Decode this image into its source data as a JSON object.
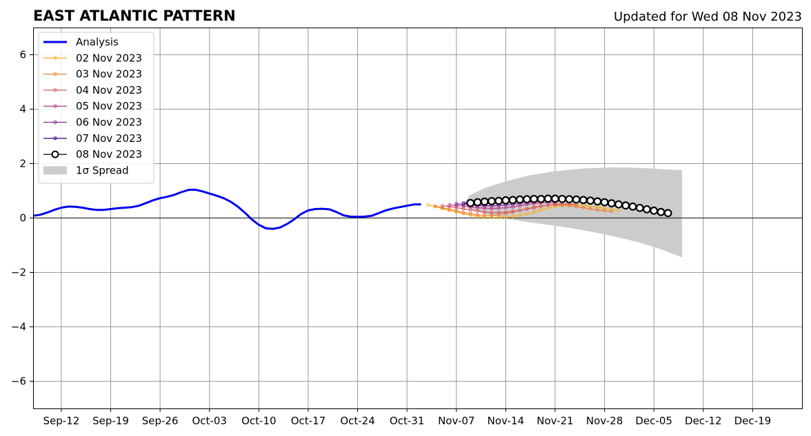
{
  "chart_data": {
    "type": "line",
    "title": "EAST ATLANTIC PATTERN",
    "subtitle": "Updated for Wed 08 Nov 2023",
    "xlabel": "",
    "ylabel": "",
    "x_range": [
      "2023-09-08",
      "2023-12-26"
    ],
    "ylim": [
      -7,
      7
    ],
    "y_ticks": [
      -6,
      -4,
      -2,
      0,
      2,
      4,
      6
    ],
    "y_tick_labels": [
      "−6",
      "−4",
      "−2",
      "0",
      "2",
      "4",
      "6"
    ],
    "x_ticks": [
      "2023-09-12",
      "2023-09-19",
      "2023-09-26",
      "2023-10-03",
      "2023-10-10",
      "2023-10-17",
      "2023-10-24",
      "2023-10-31",
      "2023-11-07",
      "2023-11-14",
      "2023-11-21",
      "2023-11-28",
      "2023-12-05",
      "2023-12-12",
      "2023-12-19"
    ],
    "x_tick_labels": [
      "Sep-12",
      "Sep-19",
      "Sep-26",
      "Oct-03",
      "Oct-10",
      "Oct-17",
      "Oct-24",
      "Oct-31",
      "Nov-07",
      "Nov-14",
      "Nov-21",
      "Nov-28",
      "Dec-05",
      "Dec-12",
      "Dec-19"
    ],
    "grid": true,
    "legend_position": "top-left",
    "analysis": {
      "name": "Analysis",
      "color": "#0000ee",
      "start": "2023-09-08",
      "values": [
        0.08,
        0.12,
        0.2,
        0.3,
        0.38,
        0.42,
        0.41,
        0.38,
        0.33,
        0.3,
        0.3,
        0.33,
        0.36,
        0.38,
        0.4,
        0.45,
        0.55,
        0.65,
        0.73,
        0.78,
        0.85,
        0.95,
        1.03,
        1.04,
        0.98,
        0.9,
        0.82,
        0.73,
        0.6,
        0.42,
        0.2,
        -0.05,
        -0.25,
        -0.38,
        -0.4,
        -0.35,
        -0.22,
        -0.05,
        0.15,
        0.28,
        0.33,
        0.34,
        0.32,
        0.22,
        0.1,
        0.05,
        0.04,
        0.05,
        0.08,
        0.18,
        0.28,
        0.35,
        0.4,
        0.45,
        0.5,
        0.5
      ]
    },
    "forecasts": [
      {
        "name": "02 Nov 2023",
        "color": "#f5b331",
        "start": "2023-11-03",
        "values": [
          0.48,
          0.42,
          0.35,
          0.28,
          0.22,
          0.16,
          0.1,
          0.06,
          0.03,
          0.02,
          0.02,
          0.03,
          0.06,
          0.1,
          0.15,
          0.22,
          0.3,
          0.37,
          0.42,
          0.46,
          0.48,
          0.48,
          0.46,
          0.43,
          0.4,
          0.36,
          0.32,
          0.28
        ]
      },
      {
        "name": "03 Nov 2023",
        "color": "#ee8336",
        "start": "2023-11-04",
        "values": [
          0.44,
          0.38,
          0.32,
          0.26,
          0.2,
          0.16,
          0.12,
          0.1,
          0.1,
          0.12,
          0.16,
          0.22,
          0.28,
          0.34,
          0.4,
          0.44,
          0.47,
          0.48,
          0.47,
          0.45,
          0.42,
          0.38,
          0.34,
          0.3,
          0.27,
          0.24
        ]
      },
      {
        "name": "04 Nov 2023",
        "color": "#d95b6a",
        "start": "2023-11-05",
        "values": [
          0.45,
          0.42,
          0.38,
          0.34,
          0.3,
          0.26,
          0.22,
          0.2,
          0.2,
          0.21,
          0.24,
          0.28,
          0.33,
          0.38,
          0.43,
          0.47,
          0.5,
          0.52,
          0.52,
          0.5
        ]
      },
      {
        "name": "05 Nov 2023",
        "color": "#b8418e",
        "start": "2023-11-06",
        "values": [
          0.48,
          0.46,
          0.43,
          0.4,
          0.38,
          0.36,
          0.35,
          0.36,
          0.38,
          0.41,
          0.45,
          0.5,
          0.54,
          0.56,
          0.57,
          0.56
        ]
      },
      {
        "name": "06 Nov 2023",
        "color": "#8a26a0",
        "start": "2023-11-07",
        "values": [
          0.52,
          0.5,
          0.48,
          0.46,
          0.45,
          0.45,
          0.46,
          0.48,
          0.51,
          0.54,
          0.57,
          0.6,
          0.62
        ]
      },
      {
        "name": "07 Nov 2023",
        "color": "#4b0f8a",
        "start": "2023-11-08",
        "values": [
          0.55,
          0.54,
          0.53,
          0.53,
          0.54,
          0.56,
          0.58,
          0.61,
          0.64,
          0.67
        ]
      }
    ],
    "current_forecast": {
      "name": "08 Nov 2023",
      "color": "#000000",
      "start": "2023-11-09",
      "values": [
        0.55,
        0.58,
        0.6,
        0.62,
        0.63,
        0.65,
        0.66,
        0.68,
        0.69,
        0.7,
        0.7,
        0.71,
        0.71,
        0.7,
        0.69,
        0.68,
        0.66,
        0.64,
        0.61,
        0.58,
        0.54,
        0.5,
        0.46,
        0.42,
        0.37,
        0.32,
        0.27,
        0.22,
        0.18
      ]
    },
    "spread": {
      "name": "1σ Spread",
      "color": "#cccccc",
      "dates": [
        "2023-11-08",
        "2023-11-09",
        "2023-11-11",
        "2023-11-14",
        "2023-11-17",
        "2023-11-21",
        "2023-11-25",
        "2023-11-29",
        "2023-12-03",
        "2023-12-06",
        "2023-12-09"
      ],
      "upper": [
        0.55,
        0.85,
        1.1,
        1.35,
        1.55,
        1.72,
        1.82,
        1.86,
        1.84,
        1.8,
        1.76
      ],
      "lower": [
        0.55,
        0.35,
        0.15,
        -0.02,
        -0.15,
        -0.28,
        -0.45,
        -0.65,
        -0.9,
        -1.15,
        -1.45
      ]
    }
  }
}
